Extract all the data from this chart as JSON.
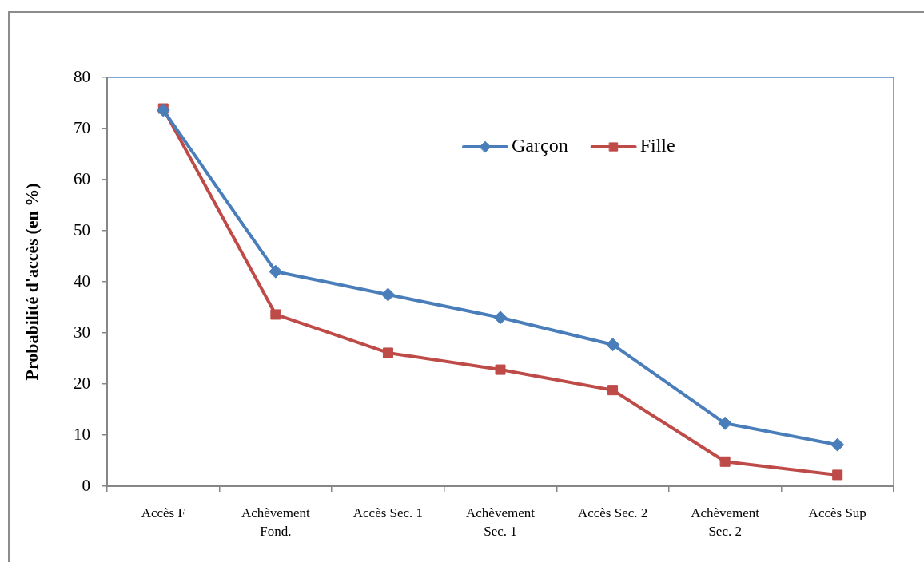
{
  "chart_data": {
    "type": "line",
    "ylabel": "Probabilité d'accès (en %)",
    "categories": [
      "Accès F",
      "Achèvement Fond.",
      "Accès Sec. 1",
      "Achèvement Sec. 1",
      "Accès Sec. 2",
      "Achèvement Sec. 2",
      "Accès Sup"
    ],
    "series": [
      {
        "name": "Garçon",
        "color": "#4a7ebb",
        "marker": "diamond",
        "values": [
          73.6,
          42.0,
          37.5,
          33.0,
          27.7,
          12.3,
          8.1
        ]
      },
      {
        "name": "Fille",
        "color": "#be4b48",
        "marker": "square",
        "values": [
          73.9,
          33.6,
          26.1,
          22.8,
          18.8,
          4.8,
          2.2
        ]
      }
    ],
    "ylim": [
      0,
      80
    ],
    "yticks": [
      0,
      10,
      20,
      30,
      40,
      50,
      60,
      70,
      80
    ],
    "grid": false,
    "legend": "top",
    "line_style": "solid"
  }
}
